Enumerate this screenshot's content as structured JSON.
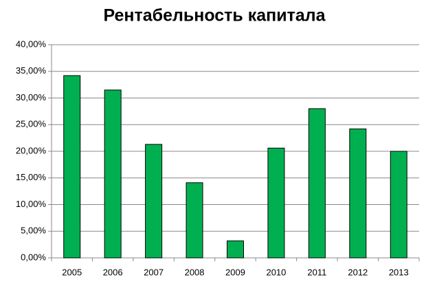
{
  "chart_data": {
    "type": "bar",
    "title": "Рентабельность капитала",
    "categories": [
      "2005",
      "2006",
      "2007",
      "2008",
      "2009",
      "2010",
      "2011",
      "2012",
      "2013"
    ],
    "values": [
      34.2,
      31.5,
      21.3,
      14.1,
      3.2,
      20.6,
      28.0,
      24.2,
      20.0
    ],
    "color": "#00b050",
    "ylim": [
      0,
      40
    ],
    "yticks": [
      {
        "value": 0,
        "label": "0,00%"
      },
      {
        "value": 5,
        "label": "5,00%"
      },
      {
        "value": 10,
        "label": "10,00%"
      },
      {
        "value": 15,
        "label": "15,00%"
      },
      {
        "value": 20,
        "label": "20,00%"
      },
      {
        "value": 25,
        "label": "25,00%"
      },
      {
        "value": 30,
        "label": "30,00%"
      },
      {
        "value": 35,
        "label": "35,00%"
      },
      {
        "value": 40,
        "label": "40,00%"
      }
    ],
    "grid": true
  }
}
